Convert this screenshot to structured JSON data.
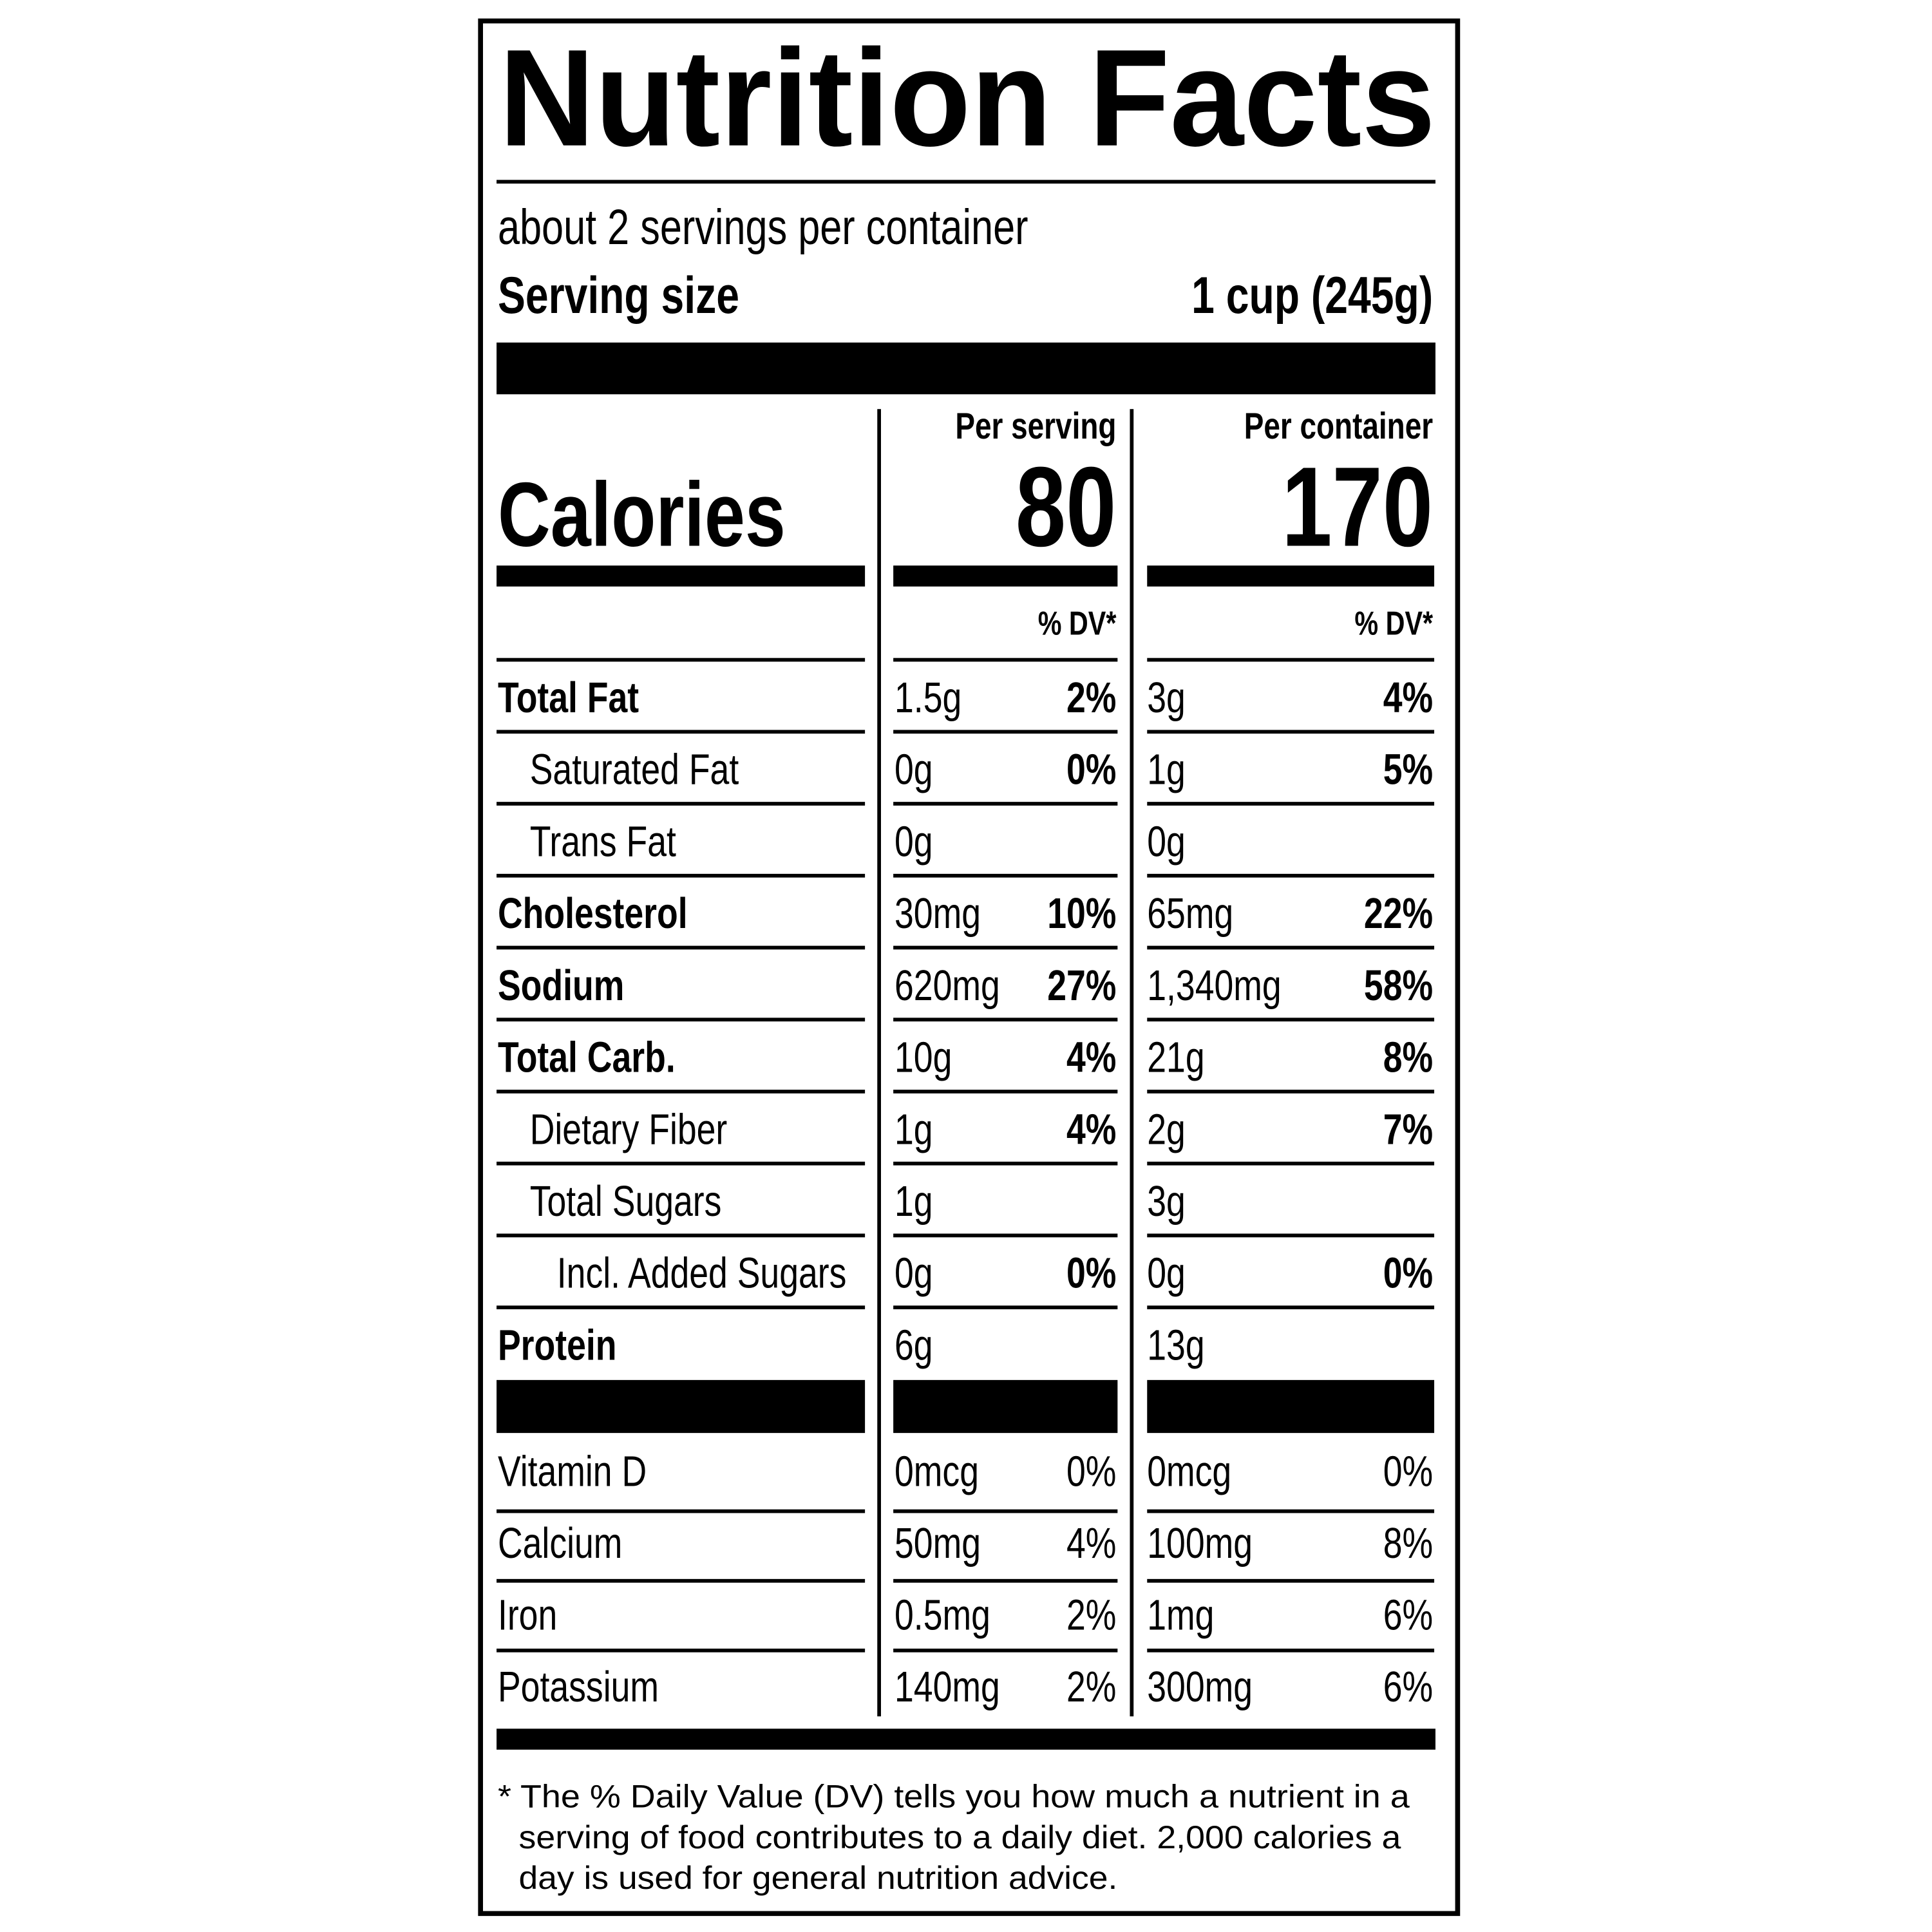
{
  "header": {
    "title": "Nutrition Facts",
    "servings": "about 2 servings per container",
    "serving_size_label": "Serving size",
    "serving_size": "1 cup (245g)"
  },
  "columns": {
    "per_serving": "Per serving",
    "per_container": "Per container",
    "dv": "% DV*"
  },
  "calories": {
    "label": "Calories",
    "per_serving": "80",
    "per_container": "170"
  },
  "nutrients": [
    {
      "name": "Total Fat",
      "bold": true,
      "indent": 0,
      "serving_amount": "1.5g",
      "serving_dv": "2%",
      "container_amount": "3g",
      "container_dv": "4%"
    },
    {
      "name": "Saturated Fat",
      "bold": false,
      "indent": 1,
      "serving_amount": "0g",
      "serving_dv": "0%",
      "container_amount": "1g",
      "container_dv": "5%"
    },
    {
      "name": "Trans Fat",
      "bold": false,
      "indent": 1,
      "serving_amount": "0g",
      "container_amount": "0g"
    },
    {
      "name": "Cholesterol",
      "bold": true,
      "indent": 0,
      "serving_amount": "30mg",
      "serving_dv": "10%",
      "container_amount": "65mg",
      "container_dv": "22%"
    },
    {
      "name": "Sodium",
      "bold": true,
      "indent": 0,
      "serving_amount": "620mg",
      "serving_dv": "27%",
      "container_amount": "1,340mg",
      "container_dv": "58%"
    },
    {
      "name": "Total Carb.",
      "bold": true,
      "indent": 0,
      "serving_amount": "10g",
      "serving_dv": "4%",
      "container_amount": "21g",
      "container_dv": "8%"
    },
    {
      "name": "Dietary Fiber",
      "bold": false,
      "indent": 1,
      "serving_amount": "1g",
      "serving_dv": "4%",
      "container_amount": "2g",
      "container_dv": "7%"
    },
    {
      "name": "Total Sugars",
      "bold": false,
      "indent": 1,
      "serving_amount": "1g",
      "container_amount": "3g"
    },
    {
      "name": "Incl. Added Sugars",
      "bold": false,
      "indent": 2,
      "serving_amount": "0g",
      "serving_dv": "0%",
      "container_amount": "0g",
      "container_dv": "0%"
    },
    {
      "name": "Protein",
      "bold": true,
      "indent": 0,
      "serving_amount": "6g",
      "container_amount": "13g"
    }
  ],
  "vitamins": [
    {
      "name": "Vitamin D",
      "serving_amount": "0mcg",
      "serving_dv": "0%",
      "container_amount": "0mcg",
      "container_dv": "0%"
    },
    {
      "name": "Calcium",
      "serving_amount": "50mg",
      "serving_dv": "4%",
      "container_amount": "100mg",
      "container_dv": "8%"
    },
    {
      "name": "Iron",
      "serving_amount": "0.5mg",
      "serving_dv": "2%",
      "container_amount": "1mg",
      "container_dv": "6%"
    },
    {
      "name": "Potassium",
      "serving_amount": "140mg",
      "serving_dv": "2%",
      "container_amount": "300mg",
      "container_dv": "6%"
    }
  ],
  "footnote": [
    "* The % Daily Value (DV) tells you how much a nutrient in a",
    "serving of food contributes to a daily diet. 2,000 calories a",
    "day is used for general nutrition advice."
  ]
}
